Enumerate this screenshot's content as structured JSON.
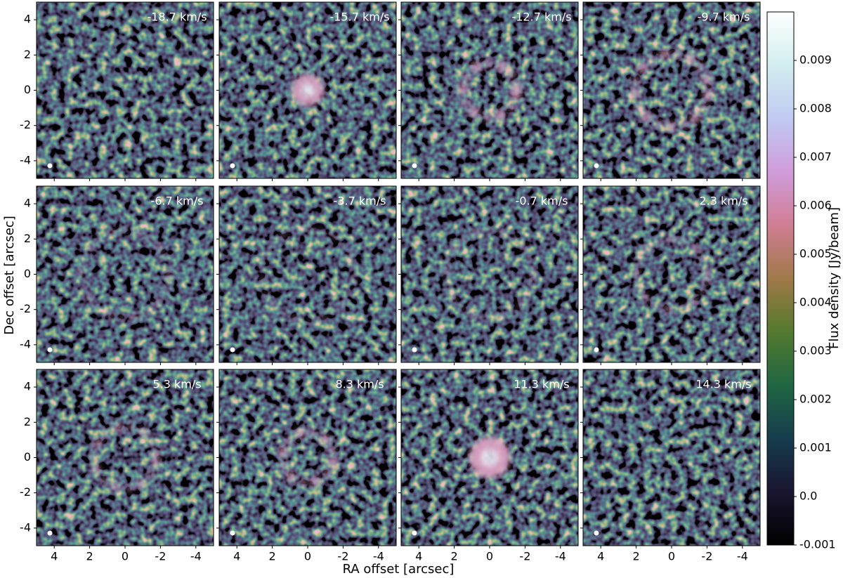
{
  "chart_data": {
    "type": "image-grid",
    "xlabel": "RA offset [arcsec]",
    "ylabel": "Dec offset [arcsec]",
    "xlim": [
      5,
      -5
    ],
    "ylim": [
      -5,
      5
    ],
    "xticks": [
      4,
      2,
      0,
      -2,
      -4
    ],
    "yticks": [
      4,
      2,
      0,
      -2,
      -4
    ],
    "panels": [
      {
        "label": "-18.7 km/s"
      },
      {
        "label": "-15.7 km/s"
      },
      {
        "label": "-12.7 km/s"
      },
      {
        "label": "-9.7 km/s"
      },
      {
        "label": "-6.7 km/s"
      },
      {
        "label": "-3.7 km/s"
      },
      {
        "label": "-0.7 km/s"
      },
      {
        "label": "2.3 km/s"
      },
      {
        "label": "5.3 km/s"
      },
      {
        "label": "8.3 km/s"
      },
      {
        "label": "11.3 km/s"
      },
      {
        "label": "14.3 km/s"
      }
    ],
    "colorbar": {
      "label": "Flux density [Jy/beam]",
      "lim": [
        -0.001,
        0.01
      ],
      "ticks": [
        -0.001,
        {
          "value": 0,
          "label": "0.0"
        },
        0.001,
        0.002,
        0.003,
        0.004,
        0.005,
        0.006,
        0.007,
        0.008,
        0.009
      ],
      "colors": [
        "#000000",
        "#1a1530",
        "#163d4e",
        "#1f6642",
        "#54792f",
        "#a07949",
        "#d07e93",
        "#cf9cda",
        "#c1caf3",
        "#d2eeef",
        "#ffffff"
      ]
    }
  }
}
